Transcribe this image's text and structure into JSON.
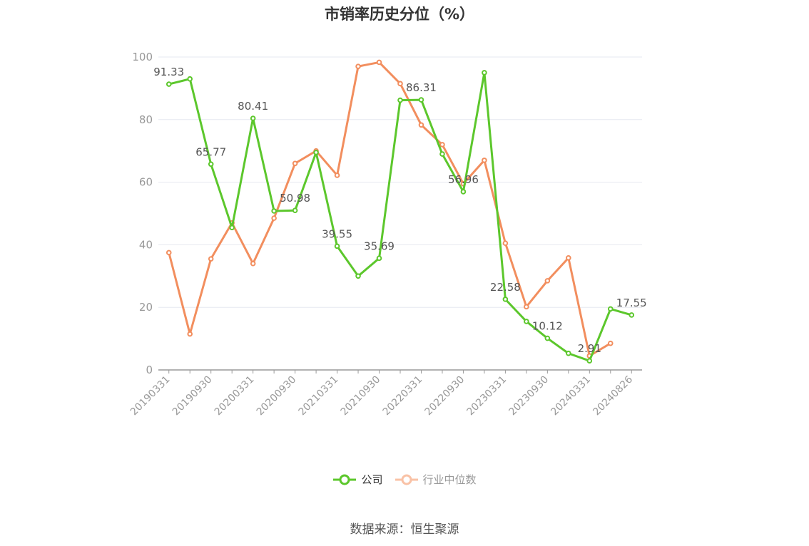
{
  "chart_data": {
    "type": "line",
    "title": "市销率历史分位（%）",
    "xlabel": "",
    "ylabel": "",
    "ylim": [
      0,
      100
    ],
    "yticks": [
      0,
      20,
      40,
      60,
      80,
      100
    ],
    "grid": true,
    "legend_position": "bottom-center",
    "x": [
      "20190331",
      "20190630",
      "20190930",
      "20191231",
      "20200331",
      "20200630",
      "20200930",
      "20201231",
      "20210331",
      "20210630",
      "20210930",
      "20211231",
      "20220331",
      "20220630",
      "20220930",
      "20221231",
      "20230331",
      "20230630",
      "20230930",
      "20231231",
      "20240331",
      "20240630",
      "20240826"
    ],
    "x_tick_labels": [
      "20190331",
      "20190930",
      "20200331",
      "20200930",
      "20210331",
      "20210930",
      "20220331",
      "20220930",
      "20230331",
      "20230930",
      "20240331",
      "20240826"
    ],
    "series": [
      {
        "name": "公司",
        "color": "#5cc72c",
        "values": [
          91.33,
          93.0,
          65.77,
          45.5,
          80.41,
          50.8,
          50.98,
          69.5,
          39.55,
          30.0,
          35.69,
          86.2,
          86.31,
          69.0,
          56.96,
          95.0,
          22.58,
          15.5,
          10.12,
          5.3,
          2.91,
          19.5,
          17.55
        ],
        "labels": {
          "0": "91.33",
          "2": "65.77",
          "4": "80.41",
          "6": "50.98",
          "8": "39.55",
          "10": "35.69",
          "12": "86.31",
          "14": "56.96",
          "16": "22.58",
          "18": "10.12",
          "20": "2.91",
          "22": "17.55"
        }
      },
      {
        "name": "行业中位数",
        "color": "#f28e5e",
        "values": [
          37.5,
          11.5,
          35.5,
          47.0,
          34.0,
          48.5,
          66.0,
          70.0,
          62.2,
          97.0,
          98.3,
          91.5,
          78.3,
          72.0,
          59.5,
          67.0,
          40.5,
          20.2,
          28.5,
          35.8,
          4.5,
          8.5,
          null
        ]
      }
    ]
  },
  "legend": [
    {
      "label": "公司",
      "color": "#5cc72c"
    },
    {
      "label": "行业中位数",
      "color": "#f28e5e"
    }
  ],
  "source": "数据来源：恒生聚源"
}
